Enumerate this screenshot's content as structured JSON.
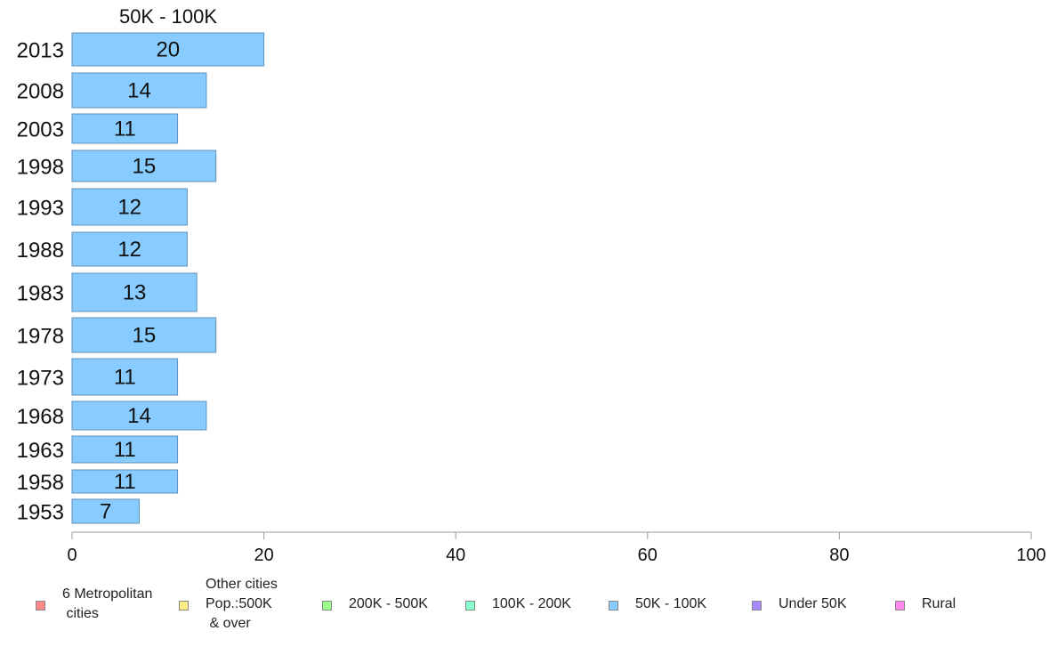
{
  "chart_data": {
    "type": "bar",
    "orientation": "horizontal",
    "title": "50K - 100K",
    "categories": [
      "2013",
      "2008",
      "2003",
      "1998",
      "1993",
      "1988",
      "1983",
      "1978",
      "1973",
      "1968",
      "1963",
      "1958",
      "1953"
    ],
    "values": [
      20,
      14,
      11,
      15,
      12,
      12,
      13,
      15,
      11,
      14,
      11,
      11,
      7
    ],
    "data_labels": [
      "20",
      "14",
      "11",
      "15",
      "12",
      "12",
      "13",
      "15",
      "11",
      "14",
      "11",
      "11",
      "7"
    ],
    "xlim": [
      0,
      100
    ],
    "x_ticks": [
      "0",
      "20",
      "40",
      "60",
      "80",
      "100"
    ],
    "grid": false,
    "bar_color": "#88ccff",
    "bar_border": "#5e8fb8",
    "legend_placement": "bottom",
    "legend": [
      {
        "label": "6 Metropolitan\n cities",
        "color": "#ff8888"
      },
      {
        "label": "Other cities\nPop.:500K\n & over",
        "color": "#ffee88"
      },
      {
        "label": "200K - 500K",
        "color": "#99ff88"
      },
      {
        "label": "100K - 200K",
        "color": "#88ffcc"
      },
      {
        "label": "50K - 100K",
        "color": "#88ccff"
      },
      {
        "label": "Under 50K",
        "color": "#aa88ff"
      },
      {
        "label": "Rural",
        "color": "#ff88ee"
      }
    ]
  }
}
